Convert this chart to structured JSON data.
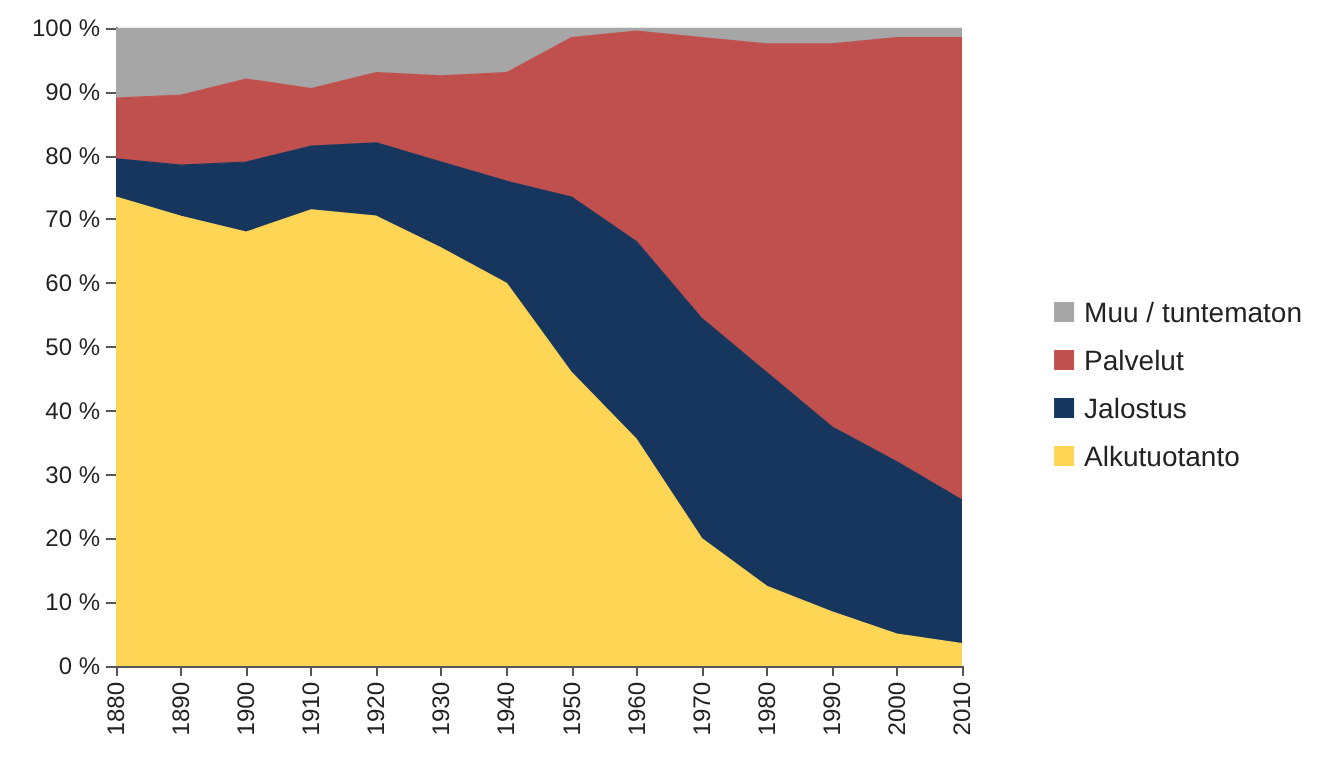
{
  "chart_data": {
    "type": "area",
    "stacked": true,
    "legend": "right",
    "grid": false,
    "categories": [
      "1880",
      "1890",
      "1900",
      "1910",
      "1920",
      "1930",
      "1940",
      "1950",
      "1960",
      "1970",
      "1980",
      "1990",
      "2000",
      "2010"
    ],
    "ylim": [
      0,
      100
    ],
    "yticks": [
      {
        "value": 0,
        "label": "0 %"
      },
      {
        "value": 10,
        "label": "10 %"
      },
      {
        "value": 20,
        "label": "20 %"
      },
      {
        "value": 30,
        "label": "30 %"
      },
      {
        "value": 40,
        "label": "40 %"
      },
      {
        "value": 50,
        "label": "50 %"
      },
      {
        "value": 60,
        "label": "60 %"
      },
      {
        "value": 70,
        "label": "70 %"
      },
      {
        "value": 80,
        "label": "80 %"
      },
      {
        "value": 90,
        "label": "90 %"
      },
      {
        "value": 100,
        "label": "100 %"
      }
    ],
    "series": [
      {
        "name": "Alkutuotanto",
        "color": "#ffd556",
        "values": [
          73.5,
          70.5,
          68,
          71.5,
          70.5,
          65.5,
          60,
          46,
          35.5,
          20,
          12.5,
          8.5,
          5,
          3.5
        ]
      },
      {
        "name": "Jalostus",
        "color": "#17365d",
        "values": [
          6,
          8,
          11,
          10,
          11.5,
          13.5,
          16,
          27.5,
          31,
          34.5,
          33.5,
          29,
          27,
          22.5
        ]
      },
      {
        "name": "Palvelut",
        "color": "#c0504d",
        "values": [
          9.5,
          11,
          13,
          9,
          11,
          13.5,
          17,
          25,
          33,
          44,
          51.5,
          60,
          66.5,
          72.5
        ]
      },
      {
        "name": "Muu / tuntematon",
        "color": "#a6a6a6",
        "values": [
          11,
          10.5,
          8,
          9.5,
          7,
          7.5,
          7,
          1.5,
          0.5,
          1.5,
          2.5,
          2.5,
          1.5,
          1.5
        ]
      }
    ]
  }
}
